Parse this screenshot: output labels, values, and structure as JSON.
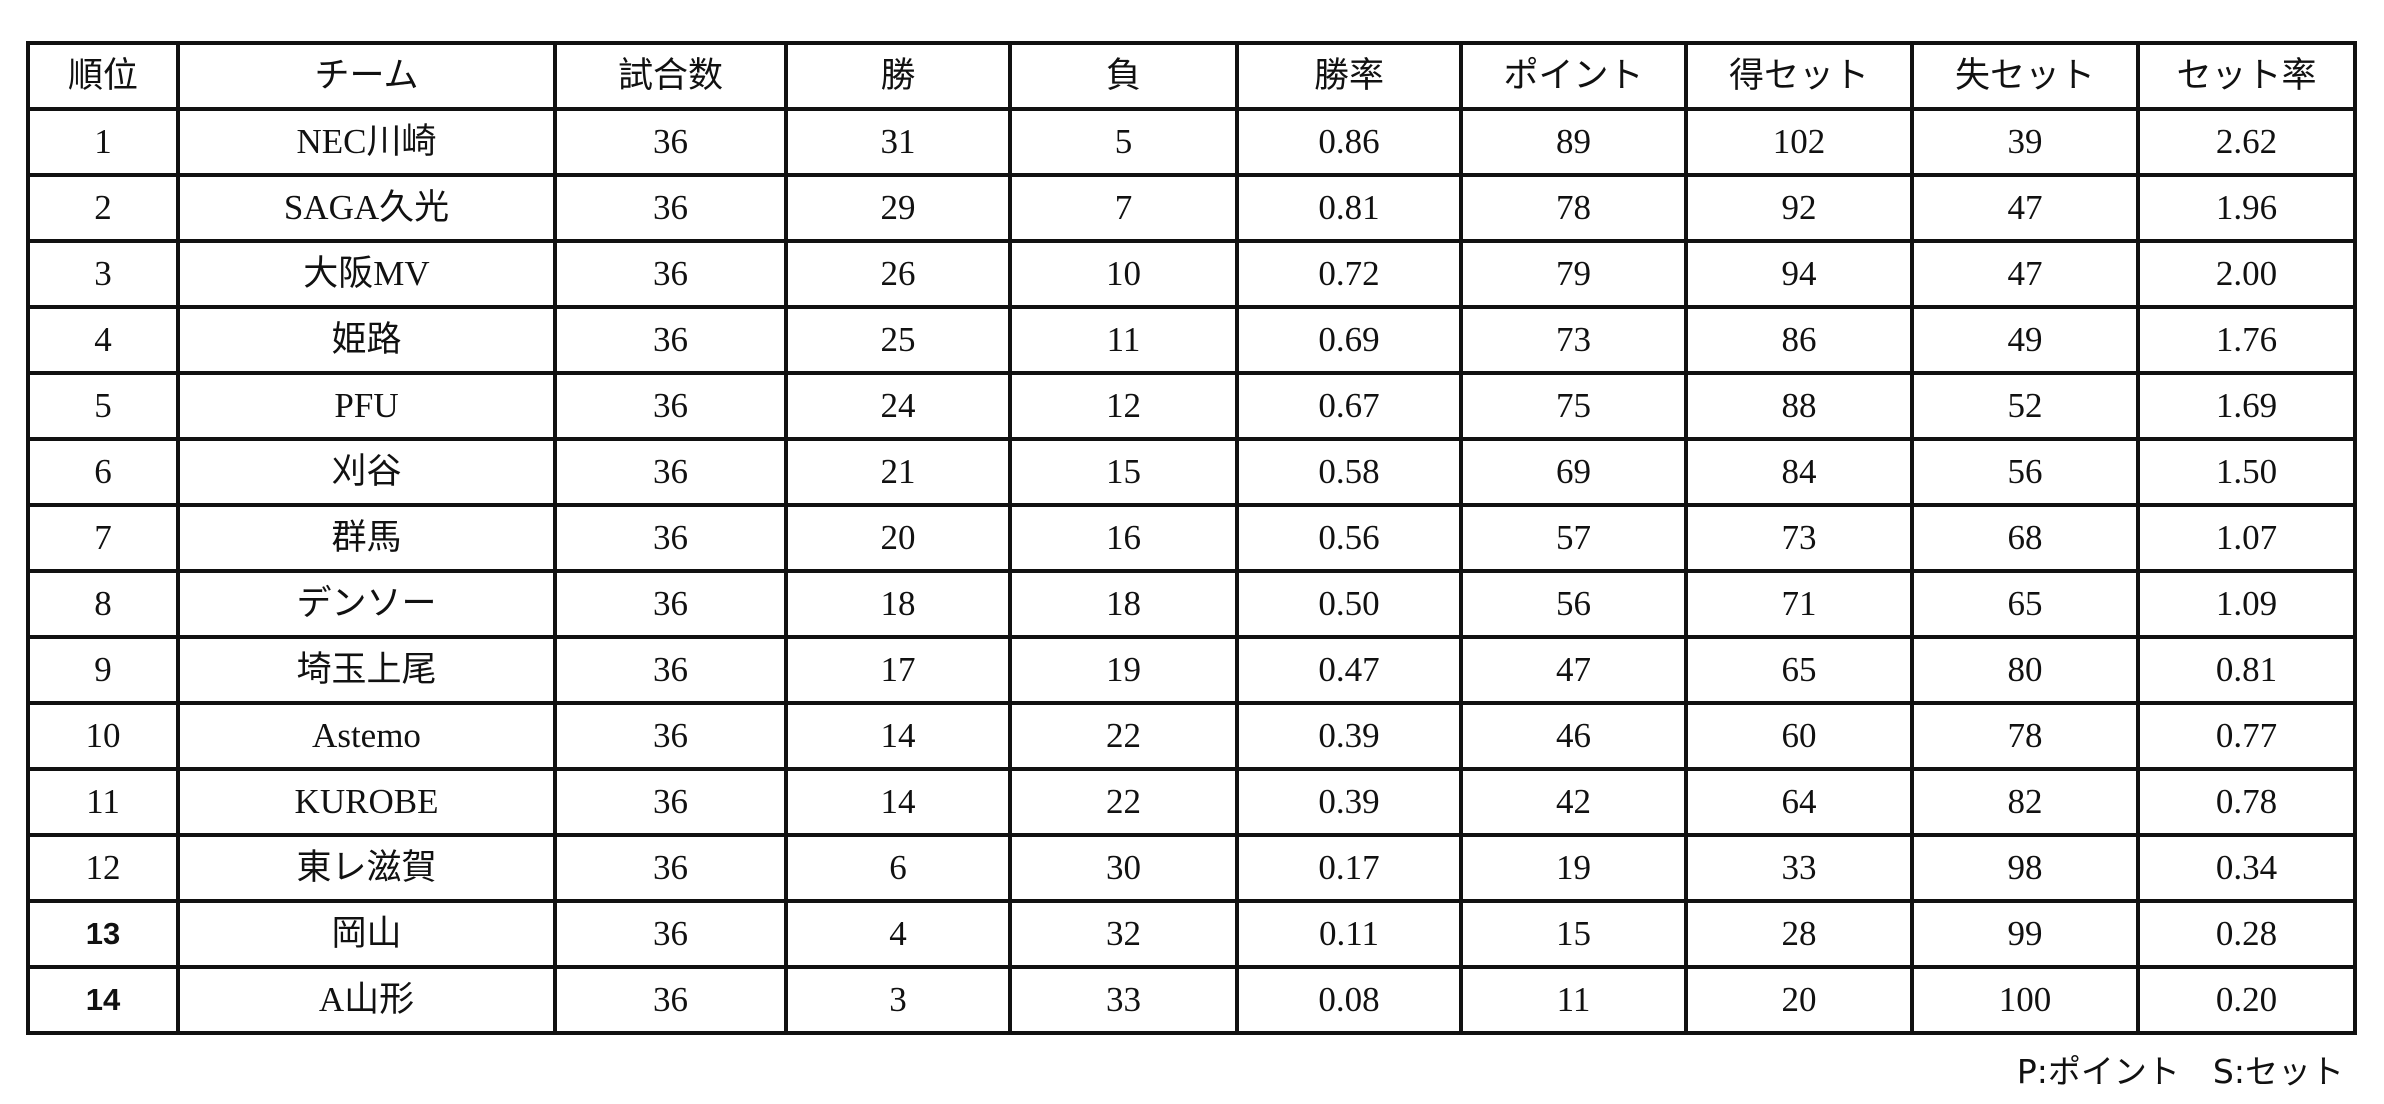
{
  "headers": [
    "順位",
    "チーム",
    "試合数",
    "勝",
    "負",
    "勝率",
    "ポイント",
    "得セット",
    "失セット",
    "セット率"
  ],
  "rows": [
    [
      "1",
      "NEC川崎",
      "36",
      "31",
      "5",
      "0.86",
      "89",
      "102",
      "39",
      "2.62"
    ],
    [
      "2",
      "SAGA久光",
      "36",
      "29",
      "7",
      "0.81",
      "78",
      "92",
      "47",
      "1.96"
    ],
    [
      "3",
      "大阪MV",
      "36",
      "26",
      "10",
      "0.72",
      "79",
      "94",
      "47",
      "2.00"
    ],
    [
      "4",
      "姫路",
      "36",
      "25",
      "11",
      "0.69",
      "73",
      "86",
      "49",
      "1.76"
    ],
    [
      "5",
      "PFU",
      "36",
      "24",
      "12",
      "0.67",
      "75",
      "88",
      "52",
      "1.69"
    ],
    [
      "6",
      "刈谷",
      "36",
      "21",
      "15",
      "0.58",
      "69",
      "84",
      "56",
      "1.50"
    ],
    [
      "7",
      "群馬",
      "36",
      "20",
      "16",
      "0.56",
      "57",
      "73",
      "68",
      "1.07"
    ],
    [
      "8",
      "デンソー",
      "36",
      "18",
      "18",
      "0.50",
      "56",
      "71",
      "65",
      "1.09"
    ],
    [
      "9",
      "埼玉上尾",
      "36",
      "17",
      "19",
      "0.47",
      "47",
      "65",
      "80",
      "0.81"
    ],
    [
      "10",
      "Astemo",
      "36",
      "14",
      "22",
      "0.39",
      "46",
      "60",
      "78",
      "0.77"
    ],
    [
      "11",
      "KUROBE",
      "36",
      "14",
      "22",
      "0.39",
      "42",
      "64",
      "82",
      "0.78"
    ],
    [
      "12",
      "東レ滋賀",
      "36",
      "6",
      "30",
      "0.17",
      "19",
      "33",
      "98",
      "0.34"
    ],
    [
      "13",
      "岡山",
      "36",
      "4",
      "32",
      "0.11",
      "15",
      "28",
      "99",
      "0.28"
    ],
    [
      "14",
      "A山形",
      "36",
      "3",
      "33",
      "0.08",
      "11",
      "20",
      "100",
      "0.20"
    ]
  ],
  "footnote": "P:ポイント　S:セット"
}
